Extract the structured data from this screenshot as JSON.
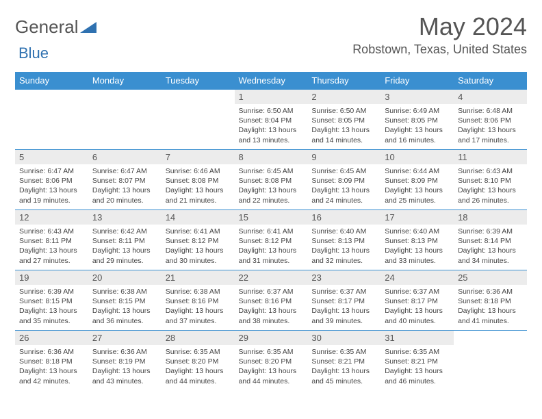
{
  "logo": {
    "text1": "General",
    "text2": "Blue"
  },
  "title": "May 2024",
  "location": "Robstown, Texas, United States",
  "header_bg": "#3a8fd0",
  "daynum_bg": "#ececec",
  "weekdays": [
    "Sunday",
    "Monday",
    "Tuesday",
    "Wednesday",
    "Thursday",
    "Friday",
    "Saturday"
  ],
  "rows": [
    [
      null,
      null,
      null,
      {
        "n": "1",
        "sunrise": "6:50 AM",
        "sunset": "8:04 PM",
        "dl1": "13 hours",
        "dl2": "13 minutes"
      },
      {
        "n": "2",
        "sunrise": "6:50 AM",
        "sunset": "8:05 PM",
        "dl1": "13 hours",
        "dl2": "14 minutes"
      },
      {
        "n": "3",
        "sunrise": "6:49 AM",
        "sunset": "8:05 PM",
        "dl1": "13 hours",
        "dl2": "16 minutes"
      },
      {
        "n": "4",
        "sunrise": "6:48 AM",
        "sunset": "8:06 PM",
        "dl1": "13 hours",
        "dl2": "17 minutes"
      }
    ],
    [
      {
        "n": "5",
        "sunrise": "6:47 AM",
        "sunset": "8:06 PM",
        "dl1": "13 hours",
        "dl2": "19 minutes"
      },
      {
        "n": "6",
        "sunrise": "6:47 AM",
        "sunset": "8:07 PM",
        "dl1": "13 hours",
        "dl2": "20 minutes"
      },
      {
        "n": "7",
        "sunrise": "6:46 AM",
        "sunset": "8:08 PM",
        "dl1": "13 hours",
        "dl2": "21 minutes"
      },
      {
        "n": "8",
        "sunrise": "6:45 AM",
        "sunset": "8:08 PM",
        "dl1": "13 hours",
        "dl2": "22 minutes"
      },
      {
        "n": "9",
        "sunrise": "6:45 AM",
        "sunset": "8:09 PM",
        "dl1": "13 hours",
        "dl2": "24 minutes"
      },
      {
        "n": "10",
        "sunrise": "6:44 AM",
        "sunset": "8:09 PM",
        "dl1": "13 hours",
        "dl2": "25 minutes"
      },
      {
        "n": "11",
        "sunrise": "6:43 AM",
        "sunset": "8:10 PM",
        "dl1": "13 hours",
        "dl2": "26 minutes"
      }
    ],
    [
      {
        "n": "12",
        "sunrise": "6:43 AM",
        "sunset": "8:11 PM",
        "dl1": "13 hours",
        "dl2": "27 minutes"
      },
      {
        "n": "13",
        "sunrise": "6:42 AM",
        "sunset": "8:11 PM",
        "dl1": "13 hours",
        "dl2": "29 minutes"
      },
      {
        "n": "14",
        "sunrise": "6:41 AM",
        "sunset": "8:12 PM",
        "dl1": "13 hours",
        "dl2": "30 minutes"
      },
      {
        "n": "15",
        "sunrise": "6:41 AM",
        "sunset": "8:12 PM",
        "dl1": "13 hours",
        "dl2": "31 minutes"
      },
      {
        "n": "16",
        "sunrise": "6:40 AM",
        "sunset": "8:13 PM",
        "dl1": "13 hours",
        "dl2": "32 minutes"
      },
      {
        "n": "17",
        "sunrise": "6:40 AM",
        "sunset": "8:13 PM",
        "dl1": "13 hours",
        "dl2": "33 minutes"
      },
      {
        "n": "18",
        "sunrise": "6:39 AM",
        "sunset": "8:14 PM",
        "dl1": "13 hours",
        "dl2": "34 minutes"
      }
    ],
    [
      {
        "n": "19",
        "sunrise": "6:39 AM",
        "sunset": "8:15 PM",
        "dl1": "13 hours",
        "dl2": "35 minutes"
      },
      {
        "n": "20",
        "sunrise": "6:38 AM",
        "sunset": "8:15 PM",
        "dl1": "13 hours",
        "dl2": "36 minutes"
      },
      {
        "n": "21",
        "sunrise": "6:38 AM",
        "sunset": "8:16 PM",
        "dl1": "13 hours",
        "dl2": "37 minutes"
      },
      {
        "n": "22",
        "sunrise": "6:37 AM",
        "sunset": "8:16 PM",
        "dl1": "13 hours",
        "dl2": "38 minutes"
      },
      {
        "n": "23",
        "sunrise": "6:37 AM",
        "sunset": "8:17 PM",
        "dl1": "13 hours",
        "dl2": "39 minutes"
      },
      {
        "n": "24",
        "sunrise": "6:37 AM",
        "sunset": "8:17 PM",
        "dl1": "13 hours",
        "dl2": "40 minutes"
      },
      {
        "n": "25",
        "sunrise": "6:36 AM",
        "sunset": "8:18 PM",
        "dl1": "13 hours",
        "dl2": "41 minutes"
      }
    ],
    [
      {
        "n": "26",
        "sunrise": "6:36 AM",
        "sunset": "8:18 PM",
        "dl1": "13 hours",
        "dl2": "42 minutes"
      },
      {
        "n": "27",
        "sunrise": "6:36 AM",
        "sunset": "8:19 PM",
        "dl1": "13 hours",
        "dl2": "43 minutes"
      },
      {
        "n": "28",
        "sunrise": "6:35 AM",
        "sunset": "8:20 PM",
        "dl1": "13 hours",
        "dl2": "44 minutes"
      },
      {
        "n": "29",
        "sunrise": "6:35 AM",
        "sunset": "8:20 PM",
        "dl1": "13 hours",
        "dl2": "44 minutes"
      },
      {
        "n": "30",
        "sunrise": "6:35 AM",
        "sunset": "8:21 PM",
        "dl1": "13 hours",
        "dl2": "45 minutes"
      },
      {
        "n": "31",
        "sunrise": "6:35 AM",
        "sunset": "8:21 PM",
        "dl1": "13 hours",
        "dl2": "46 minutes"
      },
      null
    ]
  ]
}
